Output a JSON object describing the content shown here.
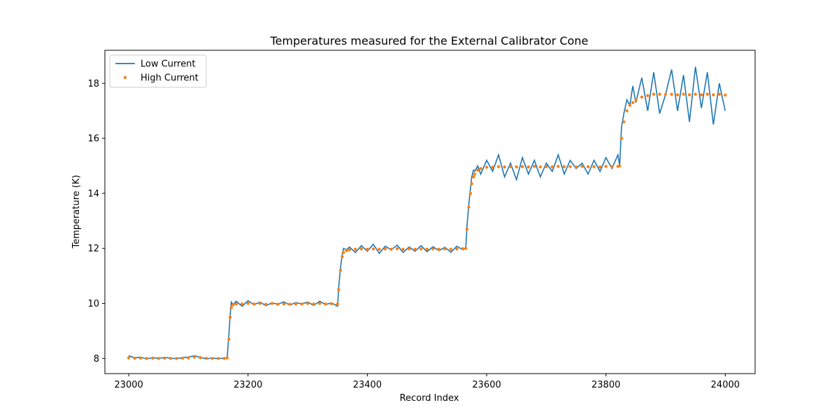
{
  "chart_data": {
    "type": "line",
    "title": "Temperatures measured for the External Calibrator Cone",
    "xlabel": "Record Index",
    "ylabel": "Temperature (K)",
    "xlim": [
      22960,
      24050
    ],
    "ylim": [
      7.45,
      19.2
    ],
    "xticks": [
      23000,
      23200,
      23400,
      23600,
      23800,
      24000
    ],
    "yticks": [
      8,
      10,
      12,
      14,
      16,
      18
    ],
    "legend_position": "upper-left",
    "grid": false,
    "series": [
      {
        "name": "Low Current",
        "style": "line",
        "color": "#1f77b4",
        "x": [
          23000,
          23010,
          23020,
          23030,
          23040,
          23050,
          23060,
          23070,
          23080,
          23090,
          23100,
          23110,
          23120,
          23130,
          23140,
          23150,
          23160,
          23165,
          23168,
          23170,
          23172,
          23175,
          23180,
          23190,
          23200,
          23210,
          23220,
          23230,
          23240,
          23250,
          23260,
          23270,
          23280,
          23290,
          23300,
          23310,
          23320,
          23330,
          23340,
          23350,
          23352,
          23355,
          23358,
          23360,
          23365,
          23370,
          23380,
          23390,
          23400,
          23410,
          23420,
          23430,
          23440,
          23450,
          23460,
          23470,
          23480,
          23490,
          23500,
          23510,
          23520,
          23530,
          23540,
          23550,
          23560,
          23565,
          23567,
          23570,
          23573,
          23575,
          23578,
          23580,
          23585,
          23590,
          23600,
          23610,
          23620,
          23630,
          23640,
          23650,
          23660,
          23670,
          23680,
          23690,
          23700,
          23710,
          23720,
          23730,
          23740,
          23750,
          23760,
          23770,
          23780,
          23790,
          23800,
          23810,
          23820,
          23823,
          23826,
          23830,
          23835,
          23840,
          23845,
          23850,
          23860,
          23870,
          23880,
          23890,
          23900,
          23910,
          23920,
          23930,
          23940,
          23950,
          23960,
          23970,
          23980,
          23990,
          24000
        ],
        "y": [
          8.1,
          8.02,
          8.05,
          7.98,
          8.03,
          8.0,
          8.04,
          8.01,
          7.99,
          8.03,
          8.05,
          8.1,
          8.04,
          7.98,
          8.02,
          7.99,
          8.01,
          8.03,
          8.9,
          9.6,
          10.05,
          9.95,
          10.08,
          9.9,
          10.1,
          9.95,
          10.05,
          9.92,
          10.02,
          9.97,
          10.06,
          9.94,
          10.03,
          9.98,
          10.05,
          9.93,
          10.08,
          9.96,
          10.02,
          9.9,
          10.6,
          11.3,
          11.8,
          12.0,
          11.95,
          12.05,
          11.85,
          12.1,
          11.9,
          12.15,
          11.82,
          12.08,
          11.95,
          12.12,
          11.85,
          12.05,
          11.9,
          12.1,
          11.88,
          12.06,
          11.92,
          12.04,
          11.86,
          12.08,
          11.95,
          12.0,
          12.8,
          13.6,
          14.2,
          14.6,
          14.85,
          14.8,
          15.0,
          14.7,
          15.2,
          14.8,
          15.4,
          14.6,
          15.1,
          14.5,
          15.3,
          14.7,
          15.2,
          14.6,
          15.1,
          14.8,
          15.4,
          14.7,
          15.2,
          14.9,
          15.1,
          14.7,
          15.2,
          14.8,
          15.3,
          14.9,
          15.4,
          15.0,
          16.4,
          16.9,
          17.4,
          17.2,
          17.9,
          17.3,
          18.2,
          17.0,
          18.4,
          16.9,
          17.6,
          18.5,
          17.0,
          18.3,
          16.6,
          18.6,
          17.1,
          18.4,
          16.5,
          18.0,
          17.0
        ]
      },
      {
        "name": "High Current",
        "style": "scatter",
        "color": "#ff7f0e",
        "x": [
          23000,
          23010,
          23020,
          23030,
          23040,
          23050,
          23060,
          23070,
          23080,
          23090,
          23100,
          23110,
          23120,
          23130,
          23140,
          23150,
          23160,
          23165,
          23168,
          23170,
          23172,
          23175,
          23180,
          23190,
          23200,
          23210,
          23220,
          23230,
          23240,
          23250,
          23260,
          23270,
          23280,
          23290,
          23300,
          23310,
          23320,
          23330,
          23340,
          23350,
          23352,
          23355,
          23358,
          23360,
          23365,
          23370,
          23380,
          23390,
          23400,
          23410,
          23420,
          23430,
          23440,
          23450,
          23460,
          23470,
          23480,
          23490,
          23500,
          23510,
          23520,
          23530,
          23540,
          23550,
          23560,
          23565,
          23567,
          23570,
          23573,
          23575,
          23578,
          23580,
          23585,
          23590,
          23600,
          23610,
          23620,
          23630,
          23640,
          23650,
          23660,
          23670,
          23680,
          23690,
          23700,
          23710,
          23720,
          23730,
          23740,
          23750,
          23760,
          23770,
          23780,
          23790,
          23800,
          23810,
          23820,
          23823,
          23826,
          23830,
          23835,
          23840,
          23845,
          23850,
          23860,
          23870,
          23880,
          23890,
          23900,
          23910,
          23920,
          23930,
          23940,
          23950,
          23960,
          23970,
          23980,
          23990,
          24000
        ],
        "y": [
          8.02,
          8.01,
          8.01,
          8.0,
          8.01,
          8.0,
          8.01,
          8.0,
          8.0,
          8.01,
          8.02,
          8.05,
          8.03,
          8.01,
          8.0,
          8.0,
          8.0,
          8.02,
          8.7,
          9.5,
          9.85,
          9.95,
          9.98,
          9.98,
          10.0,
          9.98,
          10.0,
          9.97,
          10.0,
          9.97,
          9.98,
          9.97,
          9.98,
          9.98,
          10.0,
          9.98,
          10.0,
          9.98,
          9.99,
          9.98,
          10.5,
          11.2,
          11.7,
          11.85,
          11.92,
          11.95,
          11.97,
          11.98,
          11.97,
          11.98,
          11.97,
          11.98,
          11.97,
          11.99,
          11.97,
          11.98,
          11.97,
          11.98,
          11.97,
          11.98,
          11.97,
          11.98,
          11.97,
          11.98,
          11.99,
          12.0,
          12.7,
          13.5,
          14.0,
          14.35,
          14.6,
          14.7,
          14.85,
          14.9,
          14.95,
          14.95,
          14.97,
          14.96,
          14.97,
          14.96,
          14.97,
          14.96,
          14.98,
          14.96,
          14.97,
          14.96,
          14.98,
          14.97,
          14.97,
          14.96,
          14.98,
          14.97,
          14.97,
          14.96,
          14.98,
          14.97,
          14.98,
          15.0,
          16.0,
          16.6,
          17.0,
          17.2,
          17.3,
          17.4,
          17.5,
          17.55,
          17.6,
          17.6,
          17.6,
          17.6,
          17.58,
          17.6,
          17.58,
          17.6,
          17.58,
          17.6,
          17.58,
          17.6,
          17.57
        ]
      }
    ]
  }
}
